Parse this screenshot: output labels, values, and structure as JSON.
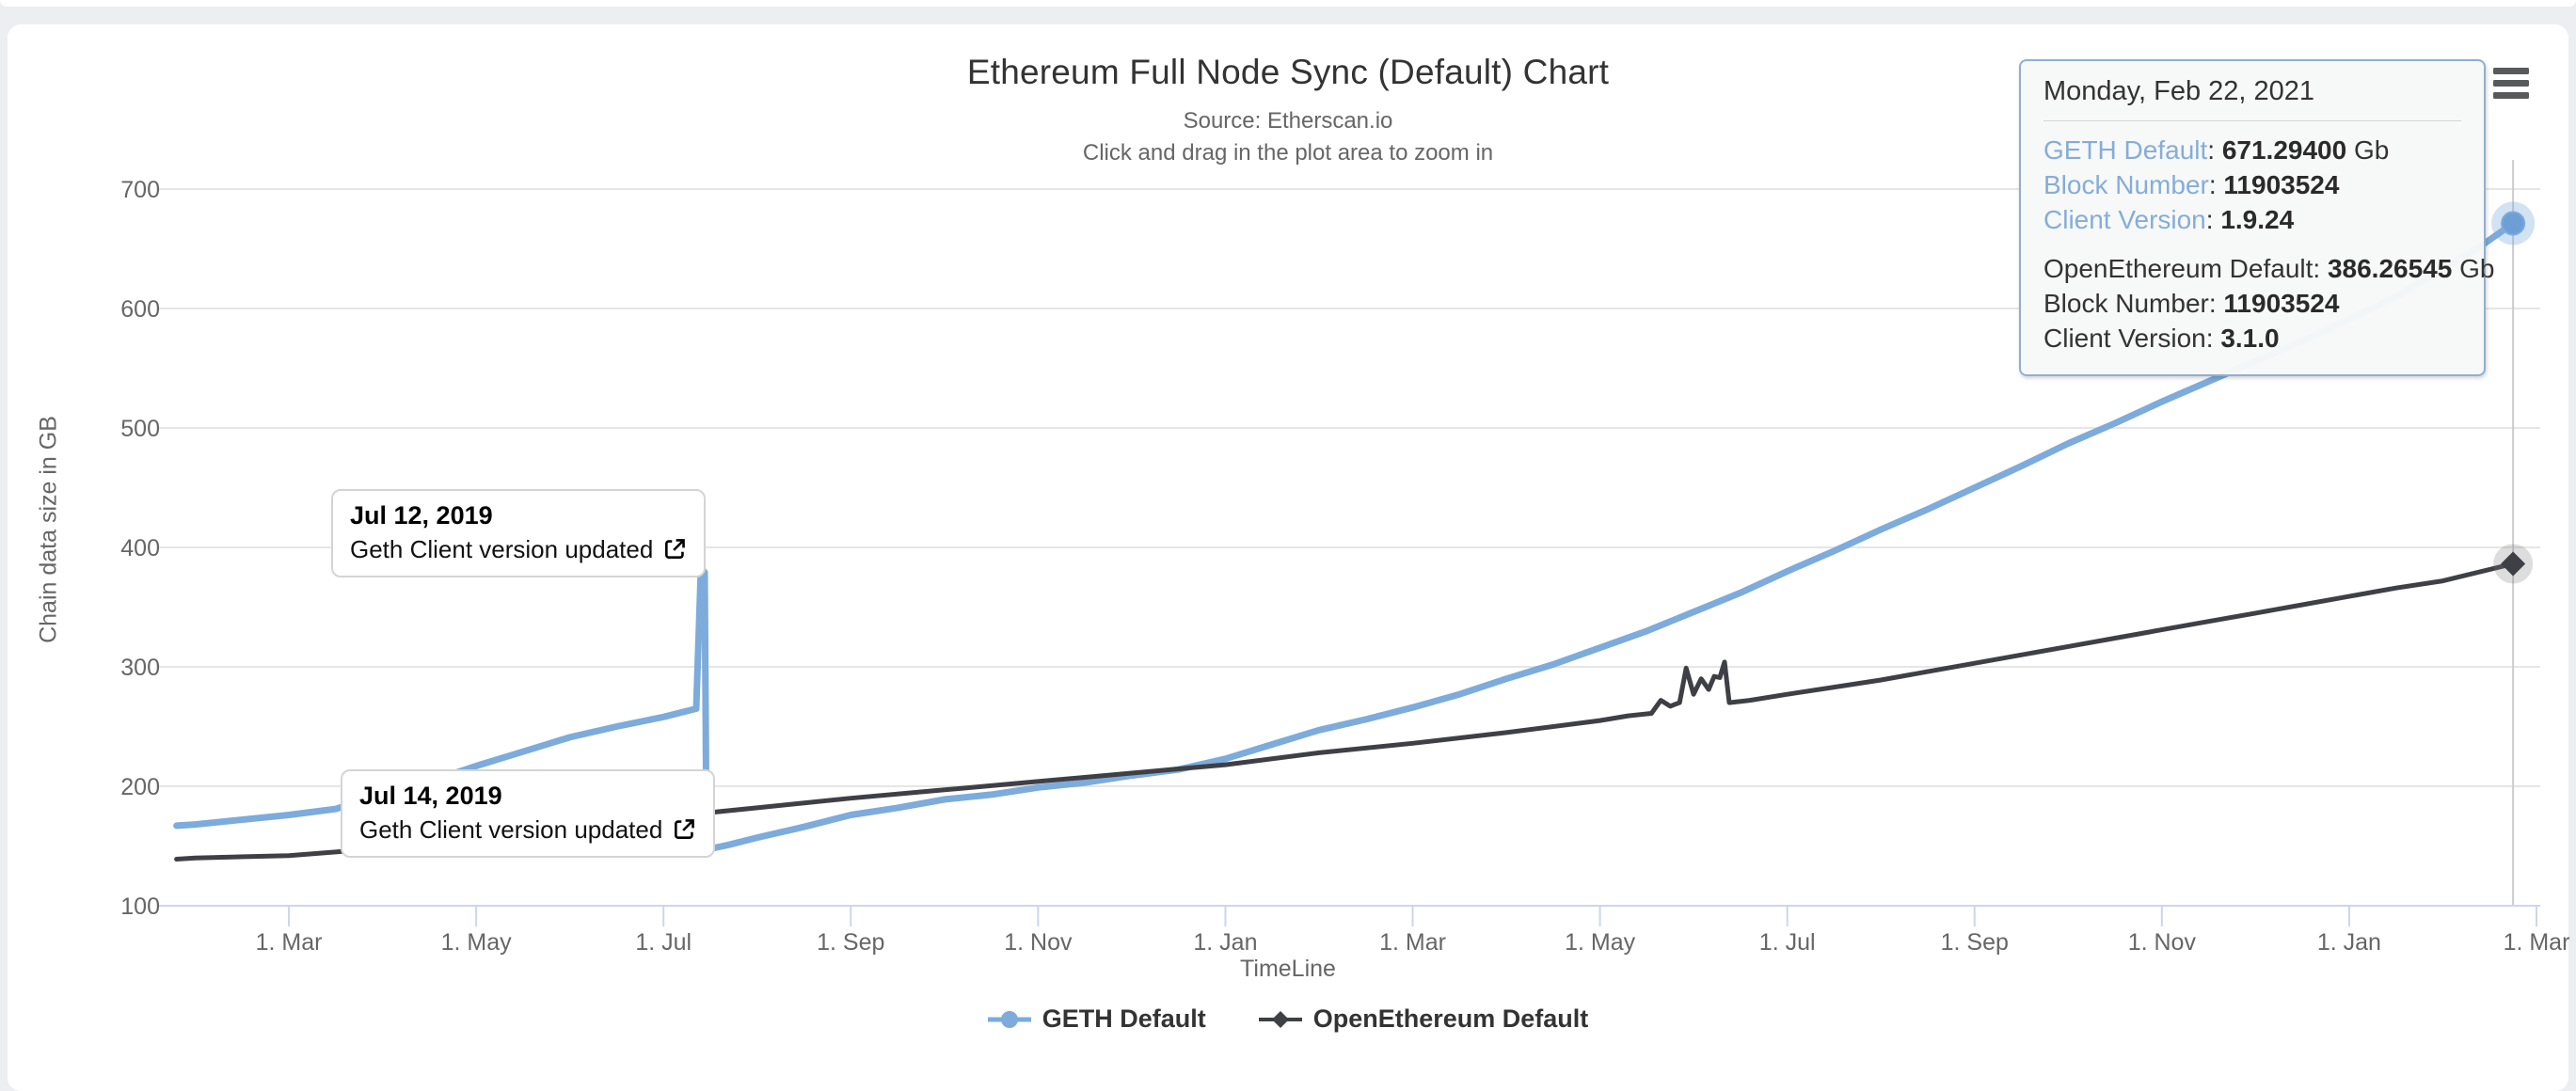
{
  "page": {
    "title": "Ethereum Full Node Sync (Default) Chart",
    "subtitle_line1": "Source: Etherscan.io",
    "subtitle_line2": "Click and drag in the plot area to zoom in"
  },
  "colors": {
    "geth_blue": "#7cabdc",
    "geth_marker": "#6d9ed6",
    "openethereum_dark": "#3f3f46",
    "gridline": "#e6e6e6",
    "axis_line": "#ccd6eb",
    "crosshair": "#cccccc",
    "tooltip_border": "#8fafd0",
    "tooltip_label_blue": "#85add9"
  },
  "chart_data": {
    "type": "line",
    "title": "Ethereum Full Node Sync (Default) Chart",
    "subtitle": [
      "Source: Etherscan.io",
      "Click and drag in the plot area to zoom in"
    ],
    "xlabel": "TimeLine",
    "ylabel": "Chain data size in GB",
    "ylim": [
      100,
      700
    ],
    "grid": true,
    "legend_position": "bottom-center",
    "y_ticks": [
      100,
      200,
      300,
      400,
      500,
      600,
      700
    ],
    "x_unit": "months since 2019-02-01",
    "x_ticks": [
      {
        "m": 1,
        "label": "1. Mar"
      },
      {
        "m": 3,
        "label": "1. May"
      },
      {
        "m": 5,
        "label": "1. Jul"
      },
      {
        "m": 7,
        "label": "1. Sep"
      },
      {
        "m": 9,
        "label": "1. Nov"
      },
      {
        "m": 11,
        "label": "1. Jan"
      },
      {
        "m": 13,
        "label": "1. Mar"
      },
      {
        "m": 15,
        "label": "1. May"
      },
      {
        "m": 17,
        "label": "1. Jul"
      },
      {
        "m": 19,
        "label": "1. Sep"
      },
      {
        "m": 21,
        "label": "1. Nov"
      },
      {
        "m": 23,
        "label": "1. Jan"
      },
      {
        "m": 25,
        "label": "1. Mar"
      }
    ],
    "series": [
      {
        "name": "GETH Default",
        "color": "#7cabdc",
        "marker": "circle",
        "line_width": 7,
        "last_point": {
          "date": "Monday, Feb 22, 2021",
          "value_gb": 671.294
        },
        "points": [
          [
            -0.2,
            167
          ],
          [
            0,
            168
          ],
          [
            1,
            176
          ],
          [
            1.5,
            181
          ],
          [
            2,
            193
          ],
          [
            2.5,
            204
          ],
          [
            3,
            217
          ],
          [
            3.5,
            229
          ],
          [
            4,
            241
          ],
          [
            4.5,
            250
          ],
          [
            5,
            258
          ],
          [
            5.35,
            265
          ],
          [
            5.4,
            383
          ],
          [
            5.44,
            379
          ],
          [
            5.46,
            147
          ],
          [
            5.7,
            151
          ],
          [
            6,
            157
          ],
          [
            6.5,
            166
          ],
          [
            7,
            176
          ],
          [
            7.5,
            182
          ],
          [
            8,
            189
          ],
          [
            8.5,
            193
          ],
          [
            9,
            199
          ],
          [
            9.5,
            203
          ],
          [
            10,
            209
          ],
          [
            10.5,
            214
          ],
          [
            11,
            223
          ],
          [
            11.5,
            235
          ],
          [
            12,
            247
          ],
          [
            12.5,
            256
          ],
          [
            13,
            266
          ],
          [
            13.5,
            277
          ],
          [
            14,
            290
          ],
          [
            14.5,
            302
          ],
          [
            15,
            316
          ],
          [
            15.5,
            330
          ],
          [
            16,
            346
          ],
          [
            16.5,
            362
          ],
          [
            17,
            380
          ],
          [
            17.5,
            397
          ],
          [
            18,
            415
          ],
          [
            18.5,
            432
          ],
          [
            19,
            450
          ],
          [
            19.5,
            468
          ],
          [
            20,
            487
          ],
          [
            20.5,
            504
          ],
          [
            21,
            522
          ],
          [
            21.5,
            539
          ],
          [
            22,
            556
          ],
          [
            22.5,
            573
          ],
          [
            23,
            591
          ],
          [
            23.5,
            610
          ],
          [
            24,
            633
          ],
          [
            24.4,
            652
          ],
          [
            24.75,
            671.294
          ]
        ]
      },
      {
        "name": "OpenEthereum Default",
        "color": "#3f3f46",
        "marker": "diamond",
        "line_width": 5,
        "last_point": {
          "date": "Monday, Feb 22, 2021",
          "value_gb": 386.265
        },
        "points": [
          [
            -0.2,
            139
          ],
          [
            0,
            140
          ],
          [
            1,
            142
          ],
          [
            2,
            148
          ],
          [
            3,
            156
          ],
          [
            4,
            165
          ],
          [
            5,
            173
          ],
          [
            5.5,
            178
          ],
          [
            6,
            182
          ],
          [
            7,
            190
          ],
          [
            8,
            197
          ],
          [
            9,
            204
          ],
          [
            10,
            211
          ],
          [
            11,
            218
          ],
          [
            12,
            228
          ],
          [
            13,
            236
          ],
          [
            14,
            245
          ],
          [
            15,
            255
          ],
          [
            15.3,
            259
          ],
          [
            15.55,
            261
          ],
          [
            15.65,
            272
          ],
          [
            15.75,
            267
          ],
          [
            15.85,
            270
          ],
          [
            15.92,
            299
          ],
          [
            16.0,
            277
          ],
          [
            16.08,
            290
          ],
          [
            16.16,
            281
          ],
          [
            16.22,
            292
          ],
          [
            16.28,
            291
          ],
          [
            16.33,
            304
          ],
          [
            16.38,
            270
          ],
          [
            16.6,
            272
          ],
          [
            17,
            277
          ],
          [
            17.5,
            283
          ],
          [
            18,
            289
          ],
          [
            18.5,
            296
          ],
          [
            19,
            303
          ],
          [
            19.5,
            310
          ],
          [
            20,
            317
          ],
          [
            20.5,
            324
          ],
          [
            21,
            331
          ],
          [
            21.5,
            338
          ],
          [
            22,
            345
          ],
          [
            22.5,
            352
          ],
          [
            23,
            359
          ],
          [
            23.5,
            366
          ],
          [
            24,
            372
          ],
          [
            24.75,
            386.265
          ]
        ]
      }
    ]
  },
  "tooltip": {
    "date": "Monday, Feb 22, 2021",
    "groups": [
      {
        "rows": [
          {
            "label": "GETH Default",
            "value": "671.29400",
            "suffix": " Gb",
            "label_style": "blue"
          },
          {
            "label": "Block Number",
            "value": "11903524",
            "suffix": "",
            "label_style": "blue"
          },
          {
            "label": "Client Version",
            "value": "1.9.24",
            "suffix": "",
            "label_style": "blue"
          }
        ]
      },
      {
        "rows": [
          {
            "label": "OpenEthereum Default",
            "value": "386.26545",
            "suffix": " Gb",
            "label_style": "dark"
          },
          {
            "label": "Block Number",
            "value": "11903524",
            "suffix": "",
            "label_style": "dark"
          },
          {
            "label": "Client Version",
            "value": "3.1.0",
            "suffix": "",
            "label_style": "dark"
          }
        ]
      }
    ]
  },
  "annotations": [
    {
      "date": "Jul 12, 2019",
      "text": "Geth Client version updated",
      "icon": "external-link-icon"
    },
    {
      "date": "Jul 14, 2019",
      "text": "Geth Client version updated",
      "icon": "external-link-icon"
    }
  ],
  "legend": [
    {
      "label": "GETH Default",
      "marker": "circle",
      "color": "#7cabdc"
    },
    {
      "label": "OpenEthereum Default",
      "marker": "diamond",
      "color": "#3f3f46"
    }
  ],
  "menu": {
    "icon": "hamburger-menu-icon"
  }
}
